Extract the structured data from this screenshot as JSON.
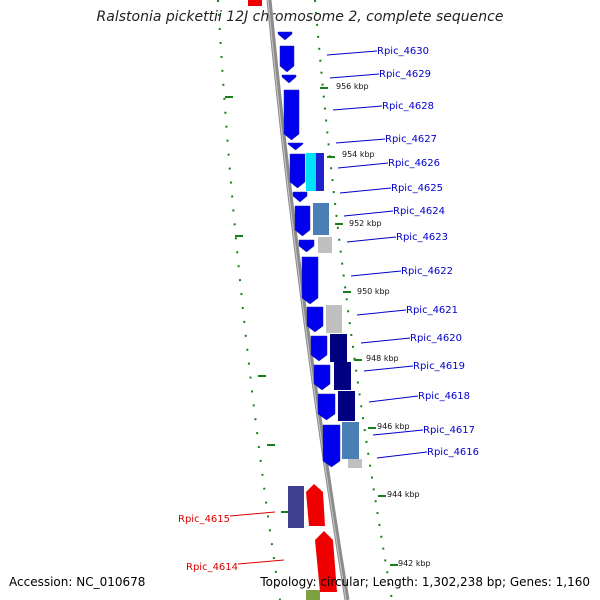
{
  "title": "Ralstonia pickettii 12J chromosome 2, complete sequence",
  "footer": {
    "accession": "Accession: NC_010678",
    "topology": "Topology: circular; Length: 1,302,238 bp; Genes: 1,160"
  },
  "colors": {
    "backbone": "#8c8c8c",
    "ruler": "#1a7f1a",
    "forward_gene_label": "#0000cc",
    "reverse_gene_label": "#dd0000"
  },
  "genes": [
    {
      "label": "Rpic_4630",
      "strand": "forward"
    },
    {
      "label": "Rpic_4629",
      "strand": "forward"
    },
    {
      "label": "Rpic_4628",
      "strand": "forward"
    },
    {
      "label": "Rpic_4627",
      "strand": "forward"
    },
    {
      "label": "Rpic_4626",
      "strand": "forward"
    },
    {
      "label": "Rpic_4625",
      "strand": "forward"
    },
    {
      "label": "Rpic_4624",
      "strand": "forward"
    },
    {
      "label": "Rpic_4623",
      "strand": "forward"
    },
    {
      "label": "Rpic_4622",
      "strand": "forward"
    },
    {
      "label": "Rpic_4621",
      "strand": "forward"
    },
    {
      "label": "Rpic_4620",
      "strand": "forward"
    },
    {
      "label": "Rpic_4619",
      "strand": "forward"
    },
    {
      "label": "Rpic_4618",
      "strand": "forward"
    },
    {
      "label": "Rpic_4617",
      "strand": "forward"
    },
    {
      "label": "Rpic_4616",
      "strand": "forward"
    },
    {
      "label": "Rpic_4615",
      "strand": "reverse"
    },
    {
      "label": "Rpic_4614",
      "strand": "reverse"
    }
  ],
  "kbp_ticks": [
    "956 kbp",
    "954 kbp",
    "952 kbp",
    "950 kbp",
    "948 kbp",
    "946 kbp",
    "944 kbp",
    "942 kbp"
  ]
}
